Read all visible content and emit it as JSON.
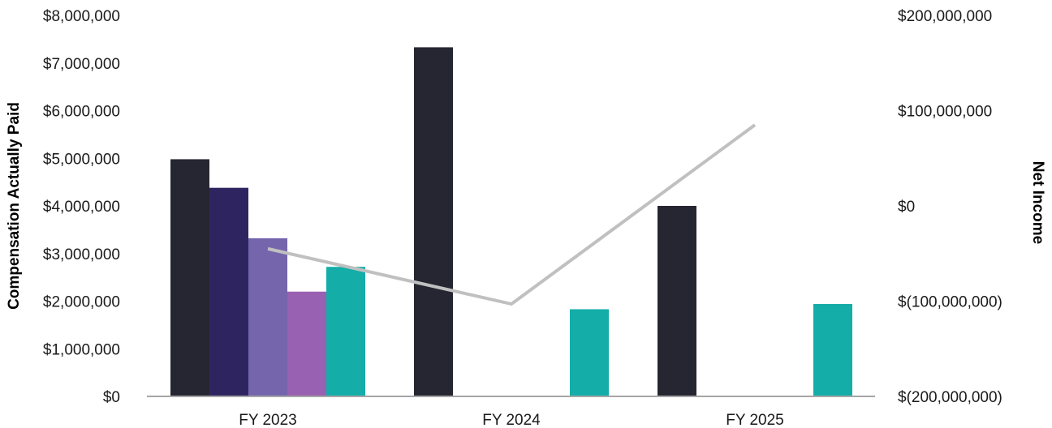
{
  "chart_data": {
    "type": "bar",
    "categories": [
      "FY 2023",
      "FY 2024",
      "FY 2025"
    ],
    "ylabel": "Compensation Actually Paid",
    "y2label": "Net Income",
    "ylim": [
      0,
      8000000
    ],
    "y2lim": [
      -200000000,
      200000000
    ],
    "y_ticks": [
      0,
      1000000,
      2000000,
      3000000,
      4000000,
      5000000,
      6000000,
      7000000,
      8000000
    ],
    "y_tick_labels": [
      "$0",
      "$1,000,000",
      "$2,000,000",
      "$3,000,000",
      "$4,000,000",
      "$5,000,000",
      "$6,000,000",
      "$7,000,000",
      "$8,000,000"
    ],
    "y2_ticks": [
      -200000000,
      -100000000,
      0,
      100000000,
      200000000
    ],
    "y2_tick_labels": [
      "$(200,000,000)",
      "$(100,000,000)",
      "$0",
      "$100,000,000",
      "$200,000,000"
    ],
    "grid": false,
    "series": [
      {
        "color": "#262632",
        "values": [
          4980000,
          7330000,
          4000000
        ]
      },
      {
        "color": "#2e2560",
        "values": [
          4380000,
          null,
          null
        ]
      },
      {
        "color": "#7565ad",
        "values": [
          3320000,
          null,
          null
        ]
      },
      {
        "color": "#9961b1",
        "values": [
          2200000,
          null,
          null
        ]
      },
      {
        "color": "#14ada8",
        "values": [
          2720000,
          1830000,
          1940000
        ]
      }
    ],
    "line_series": {
      "axis": "right",
      "color": "#c0c0c0",
      "values": [
        -45000000,
        -103000000,
        85000000
      ]
    }
  }
}
